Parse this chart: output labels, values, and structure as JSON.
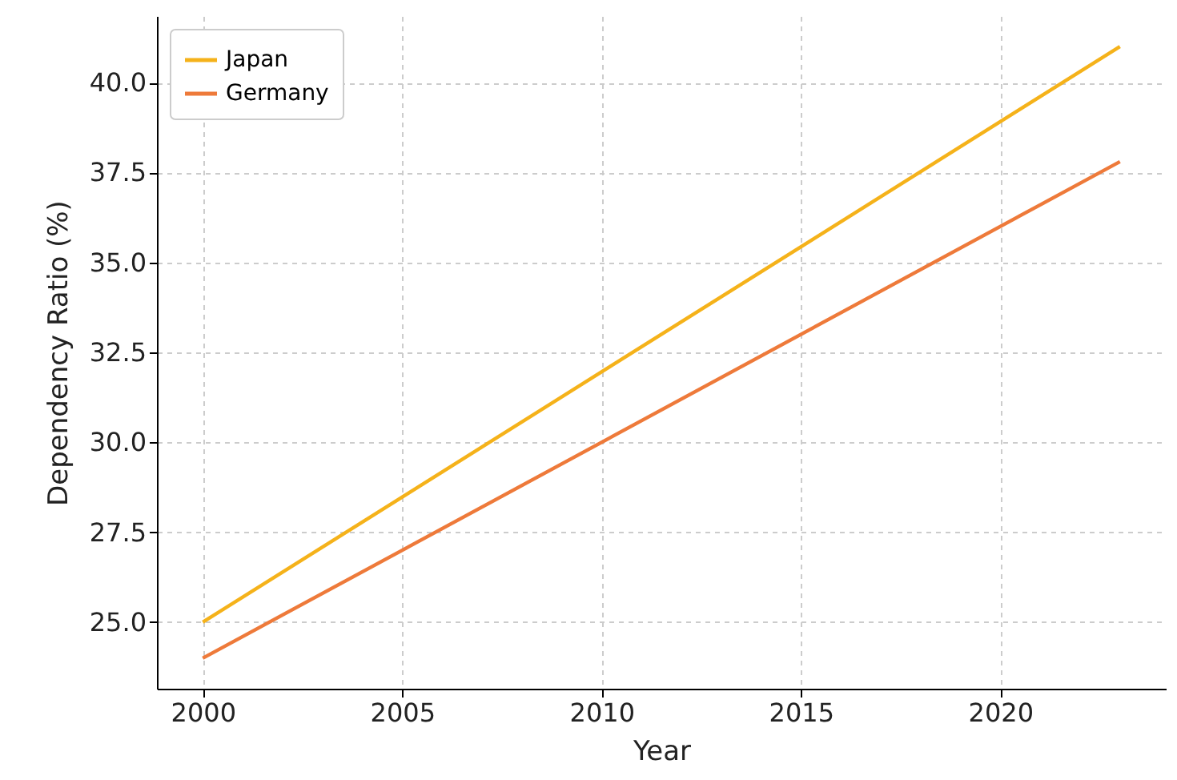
{
  "chart_data": {
    "type": "line",
    "xlabel": "Year",
    "ylabel": "Dependency Ratio (%)",
    "x": [
      2000,
      2023
    ],
    "series": [
      {
        "name": "Japan",
        "color": "#f5b21a",
        "values": [
          25.0,
          41.0
        ]
      },
      {
        "name": "Germany",
        "color": "#ee7a3a",
        "values": [
          24.0,
          37.8
        ]
      }
    ],
    "xlim": [
      1998.85,
      2024.15
    ],
    "xticks": [
      2000,
      2005,
      2010,
      2015,
      2020
    ],
    "ylim": [
      23.15,
      41.85
    ],
    "yticks": [
      {
        "value": 25,
        "label": "25.0"
      },
      {
        "value": 27.5,
        "label": "27.5"
      },
      {
        "value": 30,
        "label": "30.0"
      },
      {
        "value": 32.5,
        "label": "32.5"
      },
      {
        "value": 35,
        "label": "35.0"
      },
      {
        "value": 37.5,
        "label": "37.5"
      },
      {
        "value": 40,
        "label": "40.0"
      }
    ],
    "grid": true,
    "legend": "top left",
    "marker": "none",
    "line_style": "solid"
  }
}
